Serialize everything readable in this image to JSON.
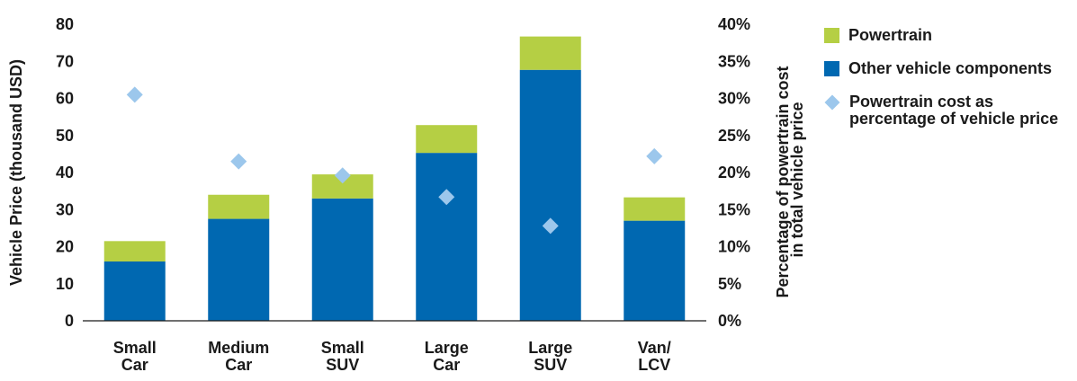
{
  "chart_data": {
    "type": "bar",
    "stacked": true,
    "categories": [
      [
        "Small",
        "Car"
      ],
      [
        "Medium",
        "Car"
      ],
      [
        "Small",
        "SUV"
      ],
      [
        "Large",
        "Car"
      ],
      [
        "Large",
        "SUV"
      ],
      [
        "Van/",
        "LCV"
      ]
    ],
    "series": [
      {
        "name": "Other vehicle components",
        "color": "#0068b1",
        "values": [
          16,
          27.5,
          33,
          45.3,
          67.7,
          27
        ]
      },
      {
        "name": "Powertrain",
        "color": "#b5cf44",
        "values": [
          5.5,
          6.5,
          6.5,
          7.5,
          9,
          6.3
        ]
      }
    ],
    "secondary_series": {
      "name": "Powertrain cost as percentage of vehicle price",
      "type": "scatter",
      "marker": "diamond",
      "color": "#9cc7ec",
      "values": [
        30.5,
        21.5,
        19.6,
        16.7,
        12.8,
        22.2
      ]
    },
    "ylabel": "Vehicle Price (thousand USD)",
    "ylim": [
      0,
      80
    ],
    "yticks": [
      0,
      10,
      20,
      30,
      40,
      50,
      60,
      70,
      80
    ],
    "y2label": [
      "Percentage of powertrain cost",
      "in total vehicle price"
    ],
    "y2lim": [
      0,
      40
    ],
    "y2ticks": [
      "0%",
      "5%",
      "10%",
      "15%",
      "20%",
      "25%",
      "30%",
      "35%",
      "40%"
    ],
    "grid": false,
    "legend_position": "right"
  },
  "legend": {
    "items": [
      {
        "label": "Powertrain",
        "color": "#b5cf44",
        "marker": "square"
      },
      {
        "label": "Other vehicle components",
        "color": "#0068b1",
        "marker": "square"
      },
      {
        "label": "Powertrain cost as percentage of vehicle price",
        "color": "#9cc7ec",
        "marker": "diamond"
      }
    ]
  }
}
